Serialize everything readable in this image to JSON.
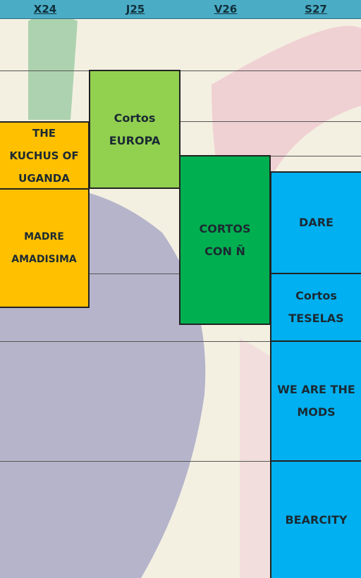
{
  "header": {
    "days": [
      "X24",
      "J25",
      "V26",
      "S27"
    ]
  },
  "events": [
    {
      "lines": [
        "THE",
        "KUCHUS OF",
        "UGANDA"
      ]
    },
    {
      "lines": [
        "MADRE",
        "AMADISIMA"
      ]
    },
    {
      "lines": [
        "Cortos",
        "EUROPA"
      ]
    },
    {
      "lines": [
        "CORTOS",
        "CON Ñ"
      ]
    },
    {
      "lines": [
        "DARE"
      ]
    },
    {
      "lines": [
        "Cortos",
        "TESELAS"
      ]
    },
    {
      "lines": [
        "WE ARE THE",
        "MODS"
      ]
    },
    {
      "lines": [
        "BEARCITY"
      ]
    }
  ]
}
